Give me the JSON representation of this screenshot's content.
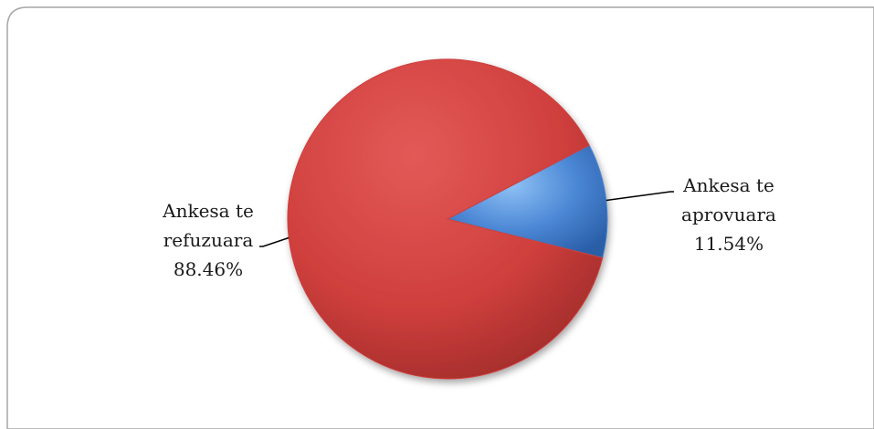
{
  "chart_data": {
    "type": "pie",
    "title": "",
    "slices": [
      {
        "label_lines": [
          "Ankesa te",
          "aprovuara"
        ],
        "value": 11.54,
        "value_label": "11.54%",
        "color": "#4a86d4"
      },
      {
        "label_lines": [
          "Ankesa te",
          "refuzuara"
        ],
        "value": 88.46,
        "value_label": "88.46%",
        "color": "#cf3f3d"
      }
    ],
    "legend": false
  },
  "colors": {
    "frame_border": "#a6a6a6",
    "leader_line": "#000000",
    "text": "#1a1a1a"
  }
}
